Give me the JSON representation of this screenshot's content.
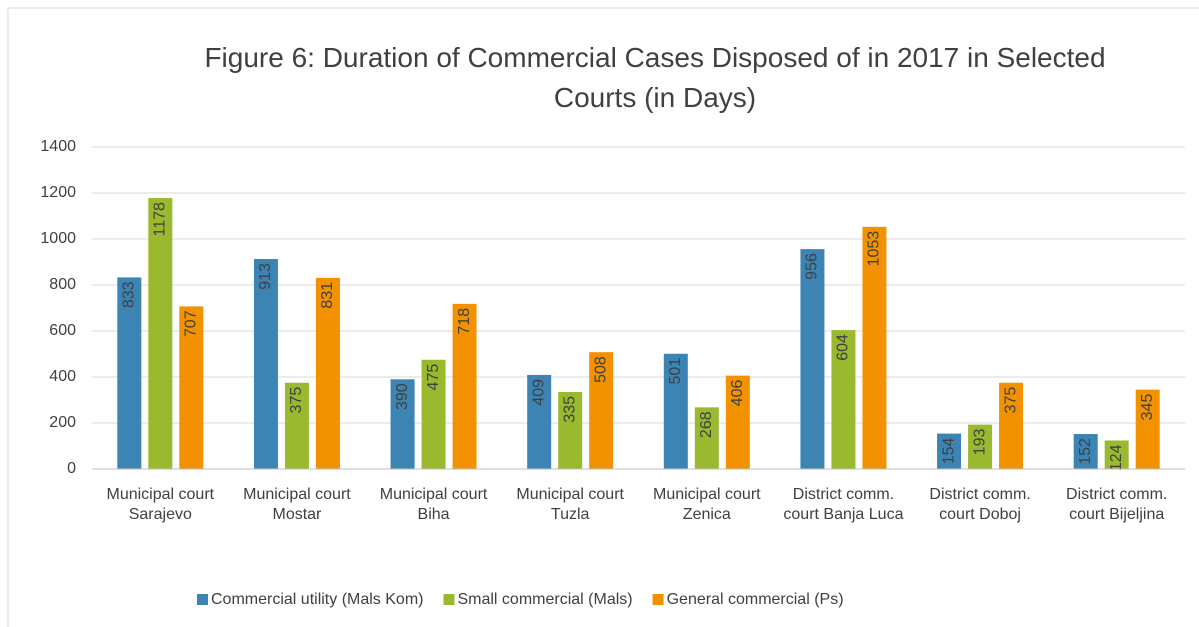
{
  "chart_data": {
    "type": "bar",
    "title": "Figure 6: Duration of Commercial Cases Disposed of in 2017 in Selected Courts (in Days)",
    "categories": [
      "Municipal court Sarajevo",
      "Municipal court Mostar",
      "Municipal court Biha",
      "Municipal court Tuzla",
      "Municipal court Zenica",
      "District comm. court Banja Luca",
      "District comm. court Doboj",
      "District comm. court Bijeljina"
    ],
    "series": [
      {
        "name": "Commercial utility (Mals Kom)",
        "color": "#3c84b4",
        "values": [
          833,
          913,
          390,
          409,
          501,
          956,
          154,
          152
        ]
      },
      {
        "name": "Small commercial (Mals)",
        "color": "#9ab92f",
        "values": [
          1178,
          375,
          475,
          335,
          268,
          604,
          193,
          124
        ]
      },
      {
        "name": "General commercial (Ps)",
        "color": "#f39200",
        "values": [
          707,
          831,
          718,
          508,
          406,
          1053,
          375,
          345
        ]
      }
    ],
    "ylim": [
      0,
      1400
    ],
    "yticks": [
      0,
      200,
      400,
      600,
      800,
      1000,
      1200,
      1400
    ],
    "grid": true,
    "legend": "bottom"
  }
}
